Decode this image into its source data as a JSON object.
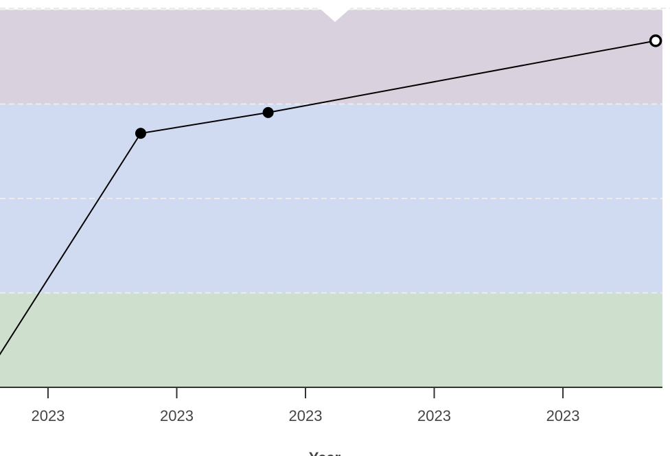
{
  "chart_data": {
    "type": "line",
    "x_label": "Year",
    "xlim": [
      0.627,
      5.773
    ],
    "xticks": [
      {
        "value": 1,
        "label": "2023"
      },
      {
        "value": 2,
        "label": "2023"
      },
      {
        "value": 3,
        "label": "2023"
      },
      {
        "value": 4,
        "label": "2023"
      },
      {
        "value": 5,
        "label": "2023"
      }
    ],
    "ylim": [
      0,
      4
    ],
    "yticks": [
      0,
      1,
      2,
      3,
      4
    ],
    "grid": true,
    "bands": [
      {
        "from": 0,
        "to": 1,
        "color": "#cfdfcd"
      },
      {
        "from": 1,
        "to": 3,
        "color": "#d0daf1"
      },
      {
        "from": 3,
        "to": 4,
        "color": "#d9d1dd"
      }
    ],
    "series": [
      {
        "color": "#000000",
        "x": [
          0.5,
          1.72,
          2.71,
          5.72
        ],
        "values": [
          0.08,
          2.69,
          2.91,
          3.67
        ],
        "last_point_open": true
      }
    ]
  }
}
